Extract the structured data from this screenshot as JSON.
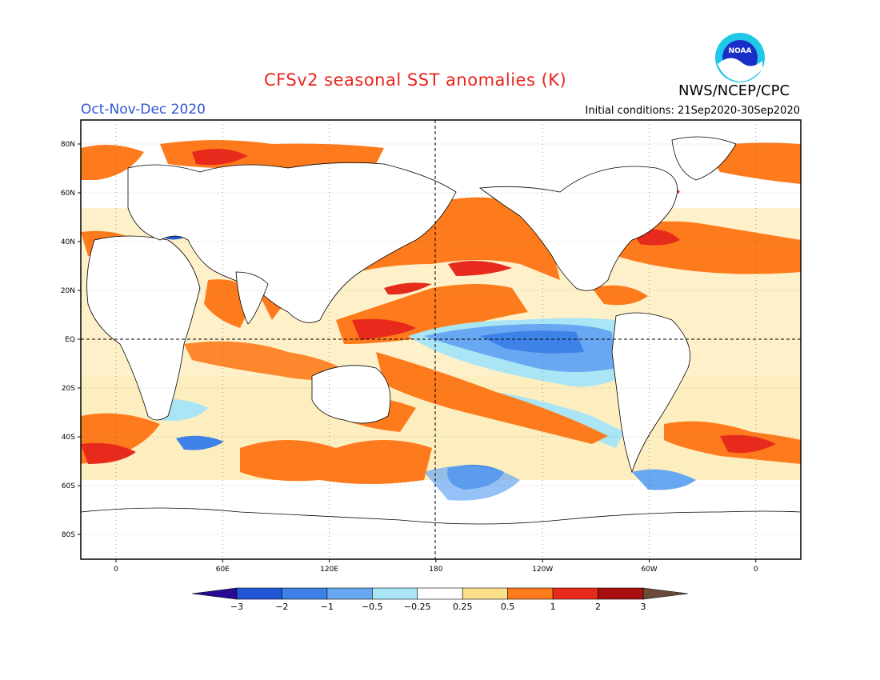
{
  "title": "CFSv2 seasonal SST anomalies (K)",
  "season": "Oct-Nov-Dec 2020",
  "initial_conditions": "Initial conditions: 21Sep2020-30Sep2020",
  "agency": "NWS/NCEP/CPC",
  "logo_text": "NOAA",
  "colors": {
    "title": "#e8241c",
    "season": "#2f55d4",
    "land": "#ffffff",
    "coast": "#000000"
  },
  "lat_labels": [
    "80N",
    "60N",
    "40N",
    "20N",
    "EQ",
    "20S",
    "40S",
    "60S",
    "80S"
  ],
  "lat_values": [
    80,
    60,
    40,
    20,
    0,
    -20,
    -40,
    -60,
    -80
  ],
  "lon_labels": [
    "0",
    "60E",
    "120E",
    "180",
    "120W",
    "60W",
    "0"
  ],
  "lon_values": [
    0,
    60,
    120,
    180,
    240,
    300,
    360
  ],
  "colorbar": {
    "labels": [
      "-3",
      "-2",
      "-1",
      "-0.5",
      "-0.25",
      "0.25",
      "0.5",
      "1",
      "2",
      "3"
    ],
    "colors": [
      "#2a0a94",
      "#2157d6",
      "#3e82e8",
      "#68a7f2",
      "#a9e5f5",
      "#ffffff",
      "#fce08a",
      "#fd7b1c",
      "#e82a1c",
      "#a81010",
      "#6b4a3a"
    ]
  }
}
